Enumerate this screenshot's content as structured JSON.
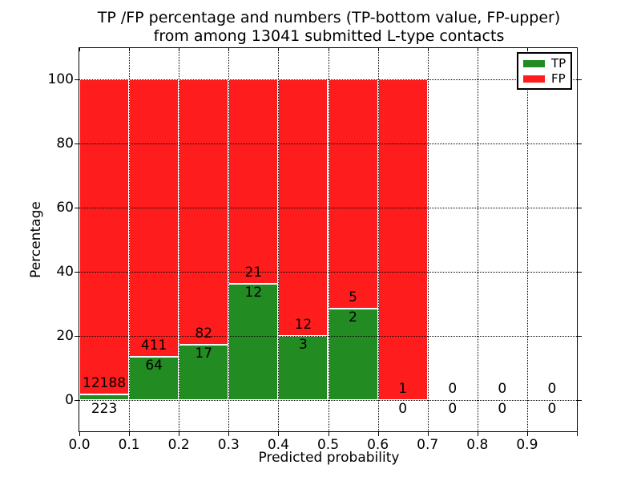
{
  "chart_data": {
    "type": "bar",
    "stacked": true,
    "title_lines": [
      "TP /FP percentage and numbers (TP-bottom value, FP-upper)",
      "from among 13041 submitted L-type contacts"
    ],
    "xlabel": "Predicted probability",
    "ylabel": "Percentage",
    "xlim": [
      0.0,
      1.0
    ],
    "ylim": [
      -10,
      110
    ],
    "x_ticks": [
      "0.0",
      "0.1",
      "0.2",
      "0.3",
      "0.4",
      "0.5",
      "0.6",
      "0.7",
      "0.8",
      "0.9"
    ],
    "y_ticks": [
      0,
      20,
      40,
      60,
      80,
      100
    ],
    "grid": true,
    "grid_style": "dotted",
    "bin_edges": [
      0.0,
      0.1,
      0.2,
      0.3,
      0.4,
      0.5,
      0.6,
      0.7,
      0.8,
      0.9,
      1.0
    ],
    "legend": {
      "position": "upper right",
      "entries": [
        {
          "label": "TP",
          "color": "#228b22"
        },
        {
          "label": "FP",
          "color": "#ff1c1c"
        }
      ]
    },
    "series": [
      {
        "name": "TP",
        "counts": [
          223,
          64,
          17,
          12,
          3,
          2,
          0,
          0,
          0,
          0
        ],
        "percent": [
          1.8,
          13.47,
          17.17,
          36.36,
          20.0,
          28.57,
          0,
          0,
          0,
          0
        ]
      },
      {
        "name": "FP",
        "counts": [
          12188,
          411,
          82,
          21,
          12,
          5,
          1,
          0,
          0,
          0
        ],
        "percent": [
          98.2,
          86.53,
          82.83,
          63.64,
          80.0,
          71.43,
          100,
          0,
          0,
          0
        ]
      }
    ],
    "bar_edge_color": "#ffffff",
    "annotation_rule": "FP count above green segment top, TP count below green segment top; both below baseline area when segment is tiny or zero"
  }
}
